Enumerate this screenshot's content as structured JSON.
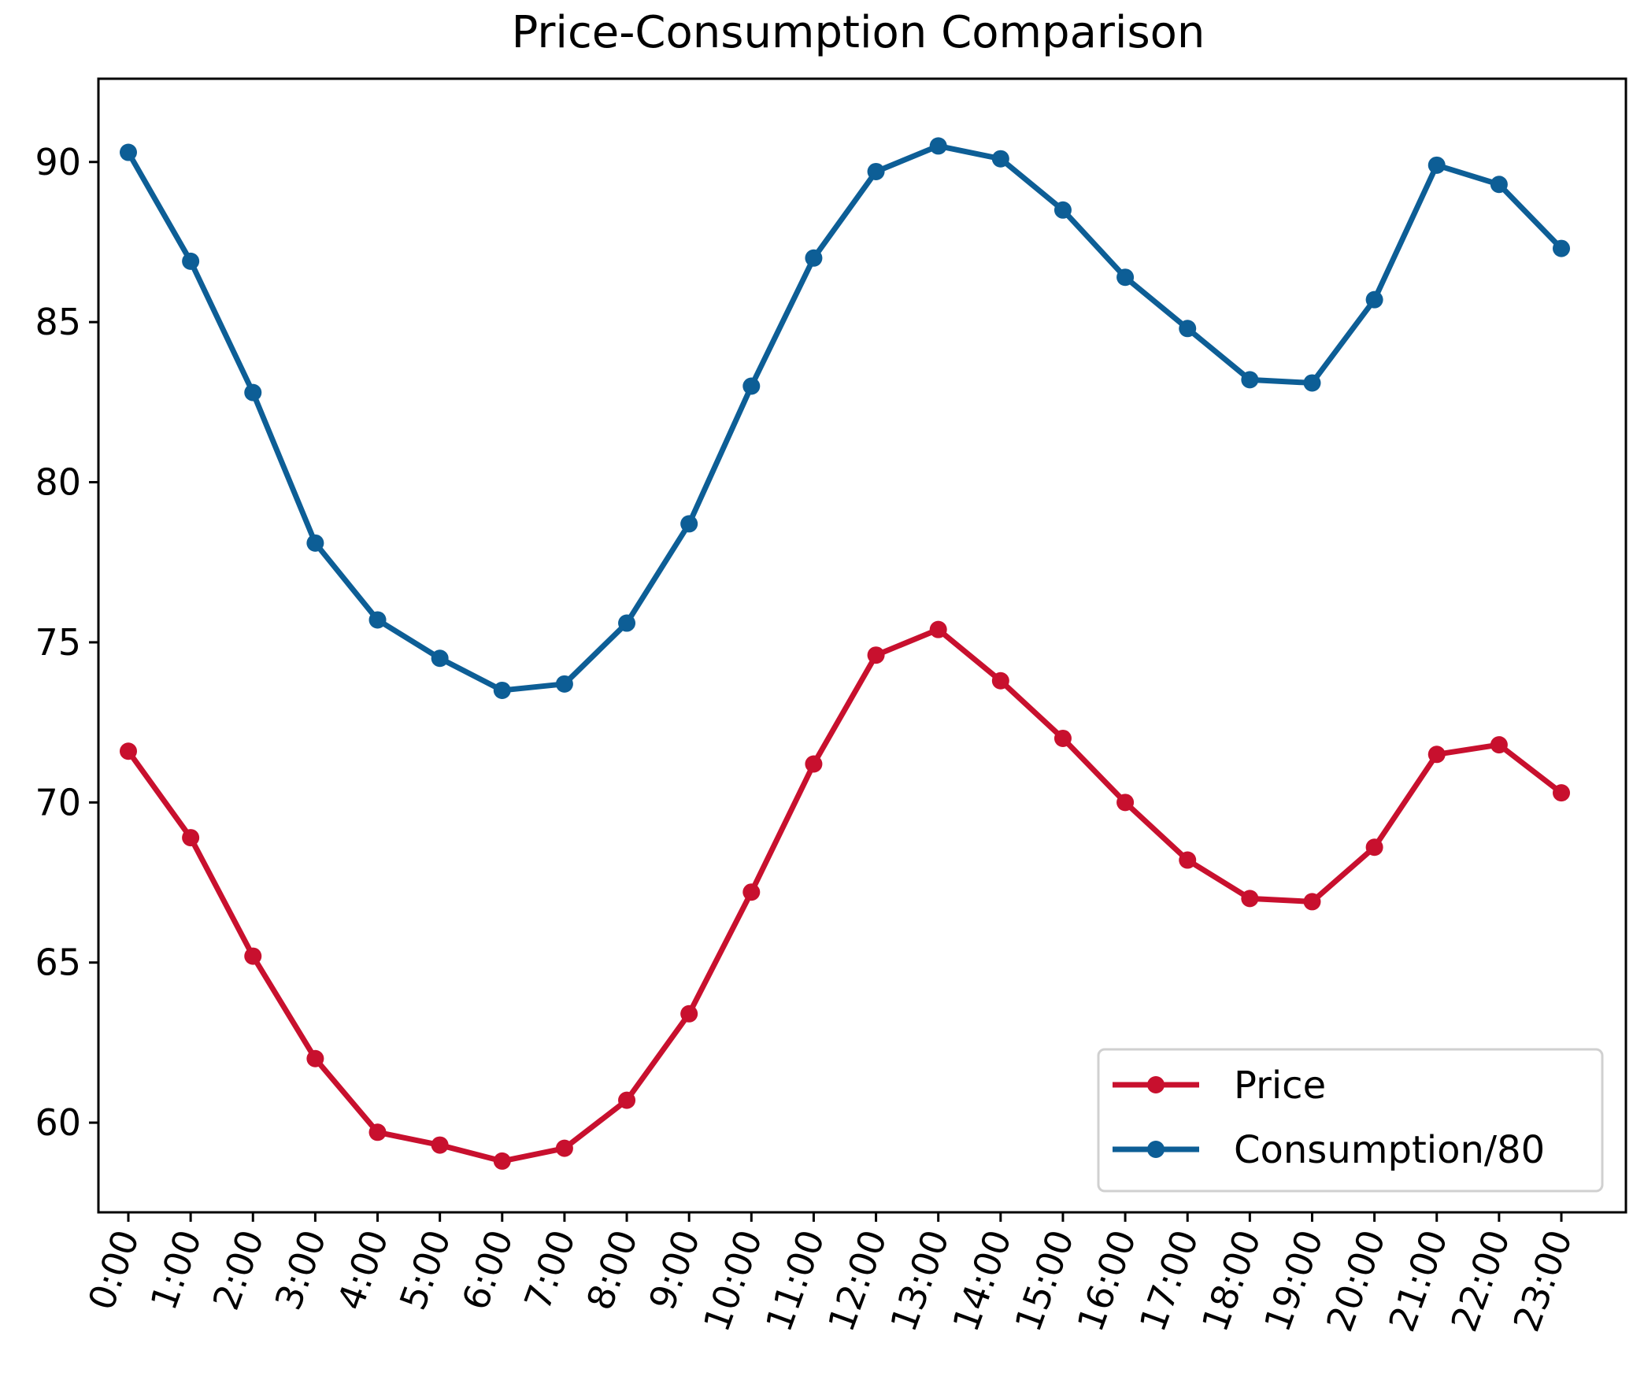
{
  "chart_data": {
    "type": "line",
    "title": "Price-Consumption Comparison",
    "xlabel": "",
    "ylabel": "",
    "categories": [
      "0:00",
      "1:00",
      "2:00",
      "3:00",
      "4:00",
      "5:00",
      "6:00",
      "7:00",
      "8:00",
      "9:00",
      "10:00",
      "11:00",
      "12:00",
      "13:00",
      "14:00",
      "15:00",
      "16:00",
      "17:00",
      "18:00",
      "19:00",
      "20:00",
      "21:00",
      "22:00",
      "23:00"
    ],
    "ylim": [
      57.2,
      92.6
    ],
    "yticks": [
      60,
      65,
      70,
      75,
      80,
      85,
      90
    ],
    "grid": false,
    "legend_position": "lower-right",
    "series": [
      {
        "name": "Price",
        "color": "#c8102e",
        "values": [
          71.6,
          68.9,
          65.2,
          62.0,
          59.7,
          59.3,
          58.8,
          59.2,
          60.7,
          63.4,
          67.2,
          71.2,
          74.6,
          75.4,
          73.8,
          72.0,
          70.0,
          68.2,
          67.0,
          66.9,
          68.6,
          71.5,
          71.8,
          70.3
        ]
      },
      {
        "name": "Consumption/80",
        "color": "#0d5e96",
        "values": [
          90.3,
          86.9,
          82.8,
          78.1,
          75.7,
          74.5,
          73.5,
          73.7,
          75.6,
          78.7,
          83.0,
          87.0,
          89.7,
          90.5,
          90.1,
          88.5,
          86.4,
          84.8,
          83.2,
          83.1,
          85.7,
          89.9,
          89.3,
          87.3
        ]
      }
    ]
  }
}
